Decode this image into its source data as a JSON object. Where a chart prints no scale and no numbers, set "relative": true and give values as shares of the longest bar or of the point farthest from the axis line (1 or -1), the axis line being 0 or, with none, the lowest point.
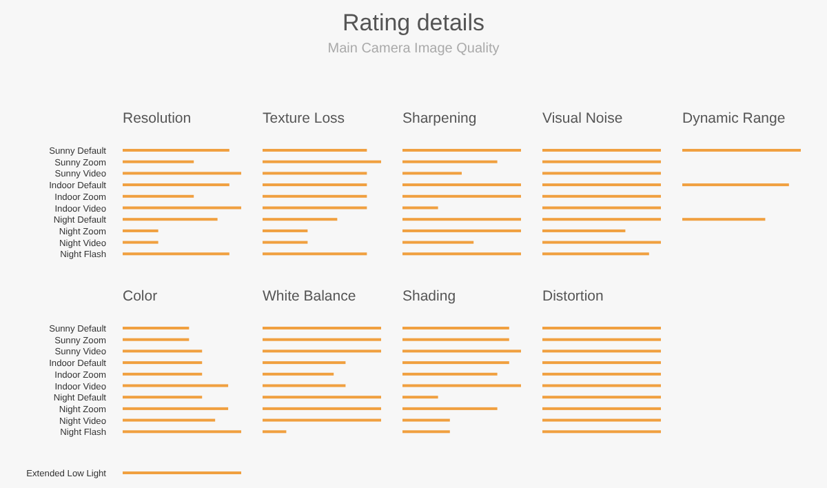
{
  "chart_data": [
    {
      "type": "bar",
      "orientation": "horizontal",
      "relative": true,
      "tick_labels": "y",
      "title": "Resolution",
      "annotations": [
        "Rating details",
        "Main Camera Image Quality"
      ],
      "color": "#f0a040",
      "categories": [
        "Sunny Default",
        "Sunny Zoom",
        "Sunny Video",
        "Indoor Default",
        "Indoor Zoom",
        "Indoor Video",
        "Night Default",
        "Night Zoom",
        "Night Video",
        "Night Flash"
      ],
      "values": [
        0.9,
        0.6,
        1,
        0.9,
        0.6,
        1,
        0.8,
        0.3,
        0.3,
        0.9
      ]
    },
    {
      "type": "bar",
      "orientation": "horizontal",
      "relative": true,
      "tick_labels": false,
      "title": "Texture Loss",
      "color": "#f0a040",
      "categories": [
        "Sunny Default",
        "Sunny Zoom",
        "Sunny Video",
        "Indoor Default",
        "Indoor Zoom",
        "Indoor Video",
        "Night Default",
        "Night Zoom",
        "Night Video",
        "Night Flash"
      ],
      "values": [
        0.88,
        1,
        0.88,
        0.88,
        0.88,
        0.88,
        0.63,
        0.38,
        0.38,
        0.88
      ]
    },
    {
      "type": "bar",
      "orientation": "horizontal",
      "relative": true,
      "tick_labels": false,
      "title": "Sharpening",
      "color": "#f0a040",
      "categories": [
        "Sunny Default",
        "Sunny Zoom",
        "Sunny Video",
        "Indoor Default",
        "Indoor Zoom",
        "Indoor Video",
        "Night Default",
        "Night Zoom",
        "Night Video",
        "Night Flash"
      ],
      "values": [
        1,
        0.8,
        0.5,
        1,
        1,
        0.3,
        1,
        1,
        0.6,
        1
      ]
    },
    {
      "type": "bar",
      "orientation": "horizontal",
      "relative": true,
      "tick_labels": false,
      "title": "Visual Noise",
      "color": "#f0a040",
      "categories": [
        "Sunny Default",
        "Sunny Zoom",
        "Sunny Video",
        "Indoor Default",
        "Indoor Zoom",
        "Indoor Video",
        "Night Default",
        "Night Zoom",
        "Night Video",
        "Night Flash"
      ],
      "values": [
        1,
        1,
        1,
        1,
        1,
        1,
        1,
        0.7,
        1,
        0.9
      ]
    },
    {
      "type": "bar",
      "orientation": "horizontal",
      "relative": true,
      "tick_labels": false,
      "title": "Dynamic Range",
      "color": "#f0a040",
      "categories": [
        "Sunny Default",
        "Sunny Zoom",
        "Sunny Video",
        "Indoor Default",
        "Indoor Zoom",
        "Indoor Video",
        "Night Default",
        "Night Zoom",
        "Night Video",
        "Night Flash"
      ],
      "values": [
        1,
        null,
        null,
        0.9,
        null,
        null,
        0.7,
        null,
        null,
        null
      ]
    },
    {
      "type": "bar",
      "orientation": "horizontal",
      "relative": true,
      "tick_labels": "y",
      "title": "Color",
      "color": "#f0a040",
      "categories": [
        "Sunny Default",
        "Sunny Zoom",
        "Sunny Video",
        "Indoor Default",
        "Indoor Zoom",
        "Indoor Video",
        "Night Default",
        "Night Zoom",
        "Night Video",
        "Night Flash"
      ],
      "values": [
        0.56,
        0.56,
        0.67,
        0.67,
        0.67,
        0.89,
        0.67,
        0.89,
        0.78,
        1
      ]
    },
    {
      "type": "bar",
      "orientation": "horizontal",
      "relative": true,
      "tick_labels": false,
      "title": "White Balance",
      "color": "#f0a040",
      "categories": [
        "Sunny Default",
        "Sunny Zoom",
        "Sunny Video",
        "Indoor Default",
        "Indoor Zoom",
        "Indoor Video",
        "Night Default",
        "Night Zoom",
        "Night Video",
        "Night Flash"
      ],
      "values": [
        1,
        1,
        1,
        0.7,
        0.6,
        0.7,
        1,
        1,
        1,
        0.2
      ]
    },
    {
      "type": "bar",
      "orientation": "horizontal",
      "relative": true,
      "tick_labels": false,
      "title": "Shading",
      "color": "#f0a040",
      "categories": [
        "Sunny Default",
        "Sunny Zoom",
        "Sunny Video",
        "Indoor Default",
        "Indoor Zoom",
        "Indoor Video",
        "Night Default",
        "Night Zoom",
        "Night Video",
        "Night Flash"
      ],
      "values": [
        0.9,
        0.9,
        1,
        0.9,
        0.8,
        1,
        0.3,
        0.8,
        0.4,
        0.4
      ]
    },
    {
      "type": "bar",
      "orientation": "horizontal",
      "relative": true,
      "tick_labels": false,
      "title": "Distortion",
      "color": "#f0a040",
      "categories": [
        "Sunny Default",
        "Sunny Zoom",
        "Sunny Video",
        "Indoor Default",
        "Indoor Zoom",
        "Indoor Video",
        "Night Default",
        "Night Zoom",
        "Night Video",
        "Night Flash"
      ],
      "values": [
        1,
        1,
        1,
        1,
        1,
        1,
        1,
        1,
        1,
        1
      ]
    },
    {
      "type": "bar",
      "orientation": "horizontal",
      "relative": true,
      "tick_labels": "y",
      "color": "#f0a040",
      "categories": [
        "Extended Low Light"
      ],
      "values": [
        1
      ]
    }
  ]
}
